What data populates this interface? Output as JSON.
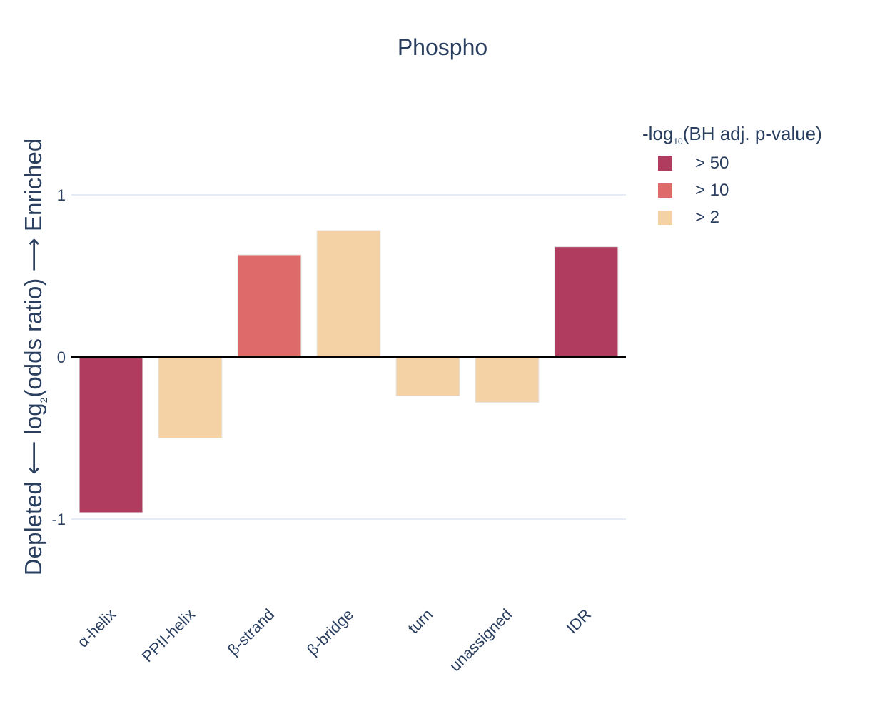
{
  "chart_data": {
    "type": "bar",
    "title": "Phospho",
    "categories": [
      "α-helix",
      "PPII-helix",
      "β-strand",
      "β-bridge",
      "turn",
      "unassigned",
      "IDR"
    ],
    "values": [
      -0.96,
      -0.5,
      0.63,
      0.78,
      -0.24,
      -0.28,
      0.68
    ],
    "significance": [
      "> 50",
      "> 2",
      "> 10",
      "> 2",
      "> 2",
      "> 2",
      "> 50"
    ],
    "ylabel": {
      "prefix": "Depleted ⟵ log",
      "subscript": "2",
      "suffix": "(odds ratio) ⟶ Enriched"
    },
    "ylim": [
      -1.45,
      1.45
    ],
    "yticks": [
      {
        "value": -1,
        "label": "-1"
      },
      {
        "value": 0,
        "label": "0"
      },
      {
        "value": 1,
        "label": "1"
      }
    ],
    "grid": true,
    "legend": {
      "placement": "top-right",
      "title_prefix": "-log",
      "title_subscript": "10",
      "title_suffix": "(BH adj. p-value)",
      "entries": [
        {
          "label": "> 50",
          "color": "#b03d5f"
        },
        {
          "label": "> 10",
          "color": "#de6a6a"
        },
        {
          "label": "> 2",
          "color": "#f5d2a6"
        }
      ]
    }
  }
}
